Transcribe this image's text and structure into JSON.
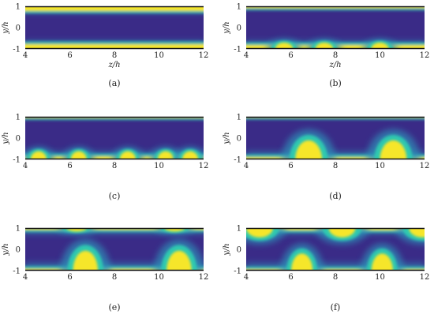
{
  "figure": {
    "panels": [
      {
        "caption": "(a)",
        "xlabel": "z/h",
        "ylabel": "y/h"
      },
      {
        "caption": "(b)",
        "xlabel": "z/h",
        "ylabel": "y/h"
      },
      {
        "caption": "(c)",
        "xlabel": "",
        "ylabel": "y/h"
      },
      {
        "caption": "(d)",
        "xlabel": "",
        "ylabel": "y/h"
      },
      {
        "caption": "(e)",
        "xlabel": "",
        "ylabel": "y/h"
      },
      {
        "caption": "(f)",
        "xlabel": "",
        "ylabel": "y/h"
      }
    ],
    "x_ticks": [
      "4",
      "6",
      "8",
      "10",
      "12"
    ],
    "y_ticks": [
      "1",
      "0",
      "-1"
    ]
  },
  "colors": {
    "background": "#3a2b87",
    "mid": "#2f8fb8",
    "cyan": "#2fc8b0",
    "high": "#f6e62b"
  },
  "chart_data": [
    {
      "type": "heatmap",
      "panel": "(a)",
      "xlim": [
        4,
        12
      ],
      "ylim": [
        -1,
        1
      ],
      "bumps_bottom": [],
      "bumps_top": [],
      "wall_layers": "thin both walls"
    },
    {
      "type": "heatmap",
      "panel": "(b)",
      "xlim": [
        4,
        12
      ],
      "ylim": [
        -1,
        1
      ],
      "bumps_bottom": [
        5.7,
        7.5,
        10.0
      ],
      "bumps_top": []
    },
    {
      "type": "heatmap",
      "panel": "(c)",
      "xlim": [
        4,
        12
      ],
      "ylim": [
        -1,
        1
      ],
      "bumps_bottom": [
        4.6,
        6.4,
        8.6,
        10.3,
        11.4
      ],
      "bumps_top": []
    },
    {
      "type": "heatmap",
      "panel": "(d)",
      "xlim": [
        4,
        12
      ],
      "ylim": [
        -1,
        1
      ],
      "bumps_bottom": [
        6.8,
        10.6
      ],
      "bumps_top": []
    },
    {
      "type": "heatmap",
      "panel": "(e)",
      "xlim": [
        4,
        12
      ],
      "ylim": [
        -1,
        1
      ],
      "bumps_bottom": [
        6.7,
        10.9
      ],
      "bumps_top": [
        6.3,
        10.7
      ]
    },
    {
      "type": "heatmap",
      "panel": "(f)",
      "xlim": [
        4,
        12
      ],
      "ylim": [
        -1,
        1
      ],
      "bumps_bottom": [
        6.5,
        10.1
      ],
      "bumps_top": [
        4.6,
        8.3,
        11.9
      ]
    }
  ]
}
